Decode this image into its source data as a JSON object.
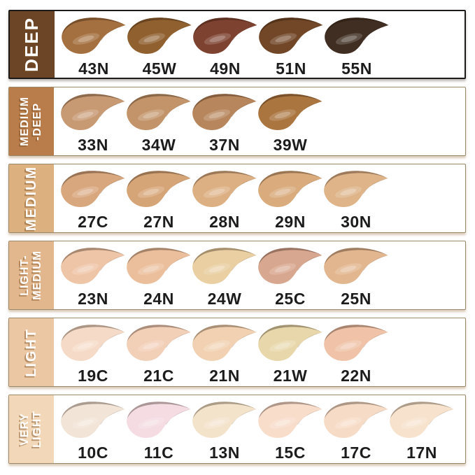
{
  "chart_data": {
    "type": "table",
    "description": "Foundation shade chart grouped by depth category",
    "style": {
      "background": "#ffffff",
      "first_row_border": "#1d1b19",
      "row_border": "#9a886a",
      "code_text_color": "#1c1c1c",
      "category_text_color": "#ffffff"
    },
    "rows": [
      {
        "category": "DEEP",
        "sidebar_color": "#6c4526",
        "swatches": [
          {
            "code": "43N",
            "color": "#a5703f"
          },
          {
            "code": "45W",
            "color": "#90602f"
          },
          {
            "code": "49N",
            "color": "#7e4230"
          },
          {
            "code": "51N",
            "color": "#714727"
          },
          {
            "code": "55N",
            "color": "#402e22"
          }
        ]
      },
      {
        "category": "MEDIUM\n-DEEP",
        "sidebar_color": "#b97c4b",
        "swatches": [
          {
            "code": "33N",
            "color": "#c89a73"
          },
          {
            "code": "34W",
            "color": "#c3946a"
          },
          {
            "code": "37N",
            "color": "#b8865c"
          },
          {
            "code": "39W",
            "color": "#aa753e"
          }
        ]
      },
      {
        "category": "MEDIUM",
        "sidebar_color": "#ddb07f",
        "swatches": [
          {
            "code": "27C",
            "color": "#d8a77e"
          },
          {
            "code": "27N",
            "color": "#d6a577"
          },
          {
            "code": "28N",
            "color": "#ddb083"
          },
          {
            "code": "29N",
            "color": "#d9ab7d"
          },
          {
            "code": "30N",
            "color": "#deb488"
          }
        ]
      },
      {
        "category": "LIGHT-\nMEDIUM",
        "sidebar_color": "#e3b78d",
        "swatches": [
          {
            "code": "23N",
            "color": "#eec5a6"
          },
          {
            "code": "24N",
            "color": "#ecbf9c"
          },
          {
            "code": "24W",
            "color": "#e9cfa1"
          },
          {
            "code": "25C",
            "color": "#d8a78f"
          },
          {
            "code": "25N",
            "color": "#e2b68f"
          }
        ]
      },
      {
        "category": "LIGHT",
        "sidebar_color": "#ebc7a3",
        "swatches": [
          {
            "code": "19C",
            "color": "#f5dbc7"
          },
          {
            "code": "21C",
            "color": "#f2cfb7"
          },
          {
            "code": "21N",
            "color": "#f1d1b1"
          },
          {
            "code": "21W",
            "color": "#e7d7aa"
          },
          {
            "code": "22N",
            "color": "#f0c3a8"
          }
        ]
      },
      {
        "category": "VERY\nLIGHT",
        "sidebar_color": "#f2d8b8",
        "swatches": [
          {
            "code": "10C",
            "color": "#f2e4d6"
          },
          {
            "code": "11C",
            "color": "#f4dce2"
          },
          {
            "code": "13N",
            "color": "#f4e3cb"
          },
          {
            "code": "15C",
            "color": "#f8ddcb"
          },
          {
            "code": "17C",
            "color": "#f6dcc6"
          },
          {
            "code": "17N",
            "color": "#f7e3cd"
          }
        ]
      }
    ]
  }
}
